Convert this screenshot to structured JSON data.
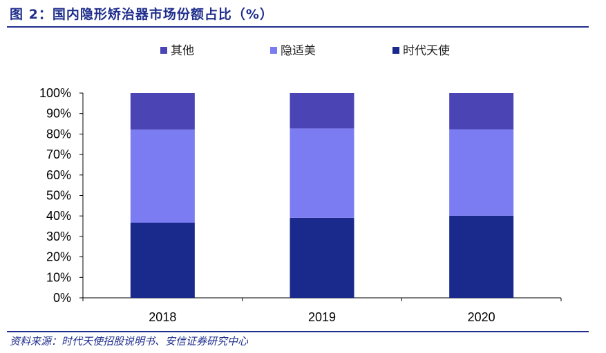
{
  "figure": {
    "title": "图 2：国内隐形矫治器市场份额占比（%）",
    "source": "资料来源：时代天使招股说明书、安信证券研究中心"
  },
  "chart_data": {
    "type": "bar",
    "stacked": true,
    "title": "",
    "xlabel": "",
    "ylabel": "",
    "categories": [
      "2018",
      "2019",
      "2020"
    ],
    "ylim": [
      0,
      100
    ],
    "yticks": [
      "0%",
      "10%",
      "20%",
      "30%",
      "40%",
      "50%",
      "60%",
      "70%",
      "80%",
      "90%",
      "100%"
    ],
    "grid": false,
    "legend_position": "top",
    "series": [
      {
        "name": "时代天使",
        "color": "#1a2a8c",
        "values": [
          36.7,
          39.1,
          40.1
        ]
      },
      {
        "name": "隐适美",
        "color": "#7b7bf2",
        "values": [
          45.5,
          43.6,
          42.2
        ]
      },
      {
        "name": "其他",
        "color": "#4a44b4",
        "values": [
          17.8,
          17.3,
          17.7
        ]
      }
    ],
    "legend_order": [
      "其他",
      "隐适美",
      "时代天使"
    ]
  }
}
